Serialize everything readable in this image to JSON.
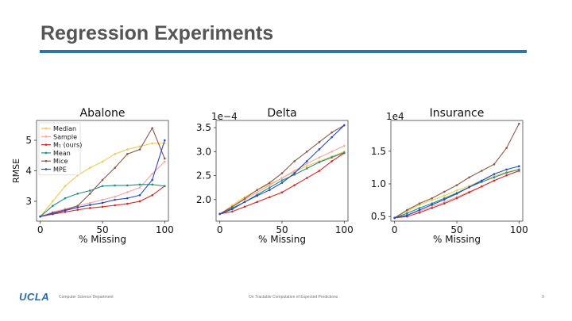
{
  "slide": {
    "title": "Regression Experiments",
    "accent_color": "#2e74a8",
    "logo_text": "UCLA",
    "footer_left": "Computer Science Department",
    "footer_center": "On Tractable Computation of Expected Predictions",
    "page_number": "9"
  },
  "series_styles": [
    {
      "name": "Median",
      "color": "#f2c94c"
    },
    {
      "name": "Sample",
      "color": "#f4a6a6"
    },
    {
      "name": "M₁ (ours)",
      "color": "#d62728"
    },
    {
      "name": "Mean",
      "color": "#1f8f83"
    },
    {
      "name": "Mice",
      "color": "#8c5a4a"
    },
    {
      "name": "MPE",
      "color": "#2747c4"
    }
  ],
  "chart_data": [
    {
      "type": "line",
      "title": "Abalone",
      "xlabel": "% Missing",
      "ylabel": "RMSE",
      "multiplier": "",
      "x": [
        0,
        10,
        20,
        30,
        40,
        50,
        60,
        70,
        80,
        90,
        100
      ],
      "xlim": [
        -3,
        103
      ],
      "ylim": [
        2.35,
        5.65
      ],
      "xticks": [
        0,
        50,
        100
      ],
      "yticks": [
        3,
        4,
        5
      ],
      "ytick_labels": [
        "3",
        "4",
        "5"
      ],
      "legend": "upper-left",
      "series": [
        {
          "name": "Median",
          "values": [
            2.5,
            3.0,
            3.5,
            3.85,
            4.1,
            4.3,
            4.55,
            4.7,
            4.8,
            4.9,
            4.9
          ]
        },
        {
          "name": "Sample",
          "values": [
            2.5,
            2.65,
            2.75,
            2.85,
            2.95,
            3.05,
            3.15,
            3.3,
            3.45,
            3.9,
            4.3
          ]
        },
        {
          "name": "M₁ (ours)",
          "values": [
            2.5,
            2.58,
            2.65,
            2.72,
            2.78,
            2.82,
            2.87,
            2.92,
            3.0,
            3.2,
            3.5
          ]
        },
        {
          "name": "Mean",
          "values": [
            2.5,
            2.85,
            3.1,
            3.25,
            3.35,
            3.5,
            3.52,
            3.52,
            3.55,
            3.55,
            3.5
          ]
        },
        {
          "name": "Mice",
          "values": [
            2.5,
            2.62,
            2.72,
            2.85,
            3.25,
            3.7,
            4.1,
            4.55,
            4.7,
            5.4,
            4.4
          ]
        },
        {
          "name": "MPE",
          "values": [
            2.5,
            2.6,
            2.7,
            2.8,
            2.88,
            2.95,
            3.05,
            3.1,
            3.2,
            3.7,
            5.0
          ]
        }
      ]
    },
    {
      "type": "line",
      "title": "Delta",
      "xlabel": "% Missing",
      "ylabel": "",
      "multiplier": "1e−4",
      "x": [
        0,
        10,
        20,
        30,
        40,
        50,
        60,
        70,
        80,
        90,
        100
      ],
      "xlim": [
        -3,
        103
      ],
      "ylim": [
        1.55,
        3.65
      ],
      "xticks": [
        0,
        50,
        100
      ],
      "yticks": [
        2.0,
        2.5,
        3.0,
        3.5
      ],
      "ytick_labels": [
        "2.0",
        "2.5",
        "3.0",
        "3.5"
      ],
      "legend": "",
      "series": [
        {
          "name": "Median",
          "values": [
            1.7,
            1.88,
            2.05,
            2.2,
            2.32,
            2.45,
            2.58,
            2.7,
            2.8,
            2.9,
            3.0
          ]
        },
        {
          "name": "Sample",
          "values": [
            1.7,
            1.85,
            2.0,
            2.15,
            2.3,
            2.45,
            2.6,
            2.75,
            2.88,
            3.0,
            3.12
          ]
        },
        {
          "name": "M₁ (ours)",
          "values": [
            1.7,
            1.75,
            1.85,
            1.95,
            2.05,
            2.15,
            2.3,
            2.45,
            2.6,
            2.8,
            2.97
          ]
        },
        {
          "name": "Mean",
          "values": [
            1.7,
            1.82,
            1.95,
            2.1,
            2.25,
            2.4,
            2.52,
            2.65,
            2.78,
            2.88,
            2.98
          ]
        },
        {
          "name": "Mice",
          "values": [
            1.7,
            1.85,
            2.02,
            2.2,
            2.35,
            2.55,
            2.8,
            3.0,
            3.2,
            3.4,
            3.55
          ]
        },
        {
          "name": "MPE",
          "values": [
            1.7,
            1.8,
            1.95,
            2.08,
            2.2,
            2.35,
            2.55,
            2.8,
            3.05,
            3.3,
            3.55
          ]
        }
      ]
    },
    {
      "type": "line",
      "title": "Insurance",
      "xlabel": "% Missing",
      "ylabel": "",
      "multiplier": "1e4",
      "x": [
        0,
        10,
        20,
        30,
        40,
        50,
        60,
        70,
        80,
        90,
        100
      ],
      "xlim": [
        -3,
        103
      ],
      "ylim": [
        0.43,
        1.97
      ],
      "xticks": [
        0,
        50,
        100
      ],
      "yticks": [
        0.5,
        1.0,
        1.5
      ],
      "ytick_labels": [
        "0.5",
        "1.0",
        "1.5"
      ],
      "legend": "",
      "series": [
        {
          "name": "Median",
          "values": [
            0.48,
            0.58,
            0.68,
            0.75,
            0.82,
            0.9,
            0.97,
            1.05,
            1.12,
            1.18,
            1.22
          ]
        },
        {
          "name": "Sample",
          "values": [
            0.48,
            0.52,
            0.58,
            0.65,
            0.72,
            0.8,
            0.88,
            0.96,
            1.05,
            1.13,
            1.2
          ]
        },
        {
          "name": "M₁ (ours)",
          "values": [
            0.48,
            0.5,
            0.56,
            0.63,
            0.7,
            0.78,
            0.87,
            0.96,
            1.05,
            1.13,
            1.2
          ]
        },
        {
          "name": "Mean",
          "values": [
            0.48,
            0.55,
            0.63,
            0.7,
            0.78,
            0.86,
            0.95,
            1.03,
            1.1,
            1.17,
            1.22
          ]
        },
        {
          "name": "Mice",
          "values": [
            0.48,
            0.6,
            0.7,
            0.78,
            0.88,
            0.98,
            1.1,
            1.2,
            1.3,
            1.55,
            1.92
          ]
        },
        {
          "name": "MPE",
          "values": [
            0.48,
            0.52,
            0.6,
            0.68,
            0.76,
            0.85,
            0.95,
            1.05,
            1.15,
            1.22,
            1.27
          ]
        }
      ]
    }
  ]
}
